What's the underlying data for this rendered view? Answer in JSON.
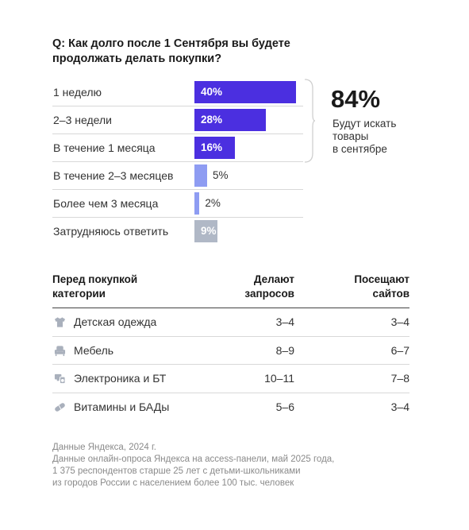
{
  "question": {
    "line1": "Q: Как долго после 1 Сентября вы будете",
    "line2": "продолжать делать покупки?"
  },
  "chart_data": {
    "type": "bar",
    "orientation": "horizontal",
    "title": "Q: Как долго после 1 Сентября вы будете продолжать делать покупки?",
    "categories": [
      "1 неделю",
      "2–3 недели",
      "В течение 1 месяца",
      "В течение 2–3 месяцев",
      "Более чем 3 месяца",
      "Затрудняюсь ответить"
    ],
    "values": [
      40,
      28,
      16,
      5,
      2,
      9
    ],
    "value_labels": [
      "40%",
      "28%",
      "16%",
      "5%",
      "2%",
      "9%"
    ],
    "colors": [
      "#4B2FE0",
      "#4B2FE0",
      "#4B2FE0",
      "#8E9CF2",
      "#8E9CF2",
      "#B0B8C6"
    ],
    "xlim": [
      0,
      40
    ],
    "grid": false
  },
  "summary": {
    "value": "84%",
    "line1": "Будут искать",
    "line2": "товары",
    "line3": "в сентябре"
  },
  "table": {
    "headers": {
      "col1_line1": "Перед покупкой",
      "col1_line2": "категории",
      "col2_line1": "Делают",
      "col2_line2": "запросов",
      "col3_line1": "Посещают",
      "col3_line2": "сайтов"
    },
    "rows": [
      {
        "icon": "tshirt-icon",
        "category": "Детская одежда",
        "queries": "3–4",
        "sites": "3–4"
      },
      {
        "icon": "armchair-icon",
        "category": "Мебель",
        "queries": "8–9",
        "sites": "6–7"
      },
      {
        "icon": "electronics-icon",
        "category": "Электроника и БТ",
        "queries": "10–11",
        "sites": "7–8"
      },
      {
        "icon": "pill-icon",
        "category": "Витамины и БАДы",
        "queries": "5–6",
        "sites": "3–4"
      }
    ]
  },
  "footnote": {
    "line1": "Данные Яндекса, 2024 г.",
    "line2": "Данные онлайн-опроса Яндекса на access-панели, май 2025 года,",
    "line3": "1 375 респондентов старше 25 лет с детьми-школьниками",
    "line4": "из городов России с населением более 100 тыс. человек"
  },
  "colors": {
    "accent": "#4B2FE0",
    "light": "#8E9CF2",
    "grey": "#B0B8C6",
    "icon": "#A9B0BC"
  }
}
